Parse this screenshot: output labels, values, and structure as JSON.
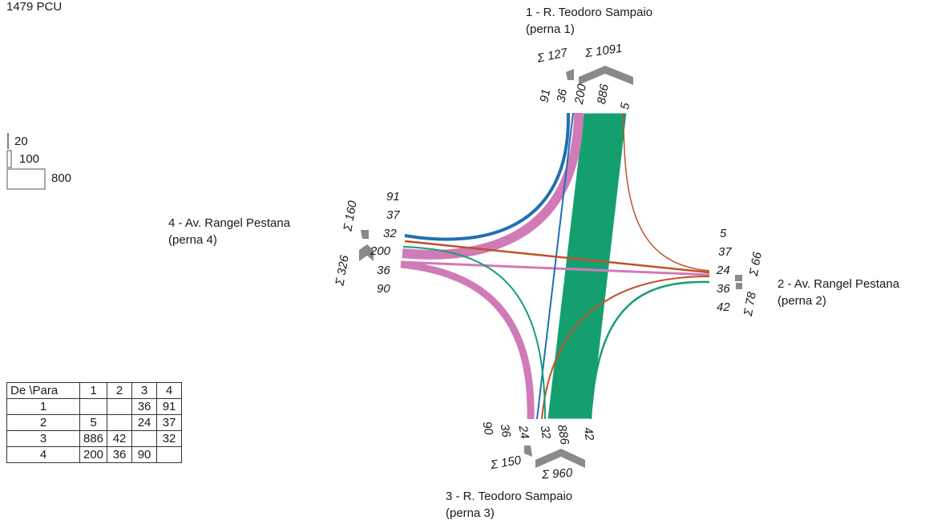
{
  "total_label": "1479 PCU",
  "scale_legend": [
    "20",
    "100",
    "800"
  ],
  "legs": {
    "leg1": {
      "name": "1 - R. Teodoro Sampaio",
      "sub": "(perna 1)",
      "sum_in": "Σ 127",
      "sum_out": "Σ 1091",
      "flows": [
        "91",
        "36",
        "200",
        "886",
        "5"
      ]
    },
    "leg2": {
      "name": "2 - Av. Rangel Pestana",
      "sub": "(perna 2)",
      "sum_in": "Σ 66",
      "sum_out": "Σ 78",
      "flows": [
        "5",
        "37",
        "24",
        "36",
        "42"
      ]
    },
    "leg3": {
      "name": "3 - R. Teodoro Sampaio",
      "sub": "(perna 3)",
      "sum_in": "Σ 150",
      "sum_out": "Σ 960",
      "flows": [
        "90",
        "36",
        "24",
        "32",
        "886",
        "42"
      ]
    },
    "leg4": {
      "name": "4 - Av. Rangel Pestana",
      "sub": "(perna 4)",
      "sum_in": "Σ 160",
      "sum_out": "Σ 326",
      "flows": [
        "91",
        "37",
        "32",
        "200",
        "36",
        "90"
      ]
    }
  },
  "matrix": {
    "corner": "De \\Para",
    "headers": [
      "1",
      "2",
      "3",
      "4"
    ],
    "rows": [
      {
        "from": "1",
        "cells": [
          "",
          "",
          "36",
          "91"
        ]
      },
      {
        "from": "2",
        "cells": [
          "5",
          "",
          "24",
          "37"
        ]
      },
      {
        "from": "3",
        "cells": [
          "886",
          "42",
          "",
          "32"
        ]
      },
      {
        "from": "4",
        "cells": [
          "200",
          "36",
          "90",
          ""
        ]
      }
    ]
  },
  "colors": {
    "leg1": "#1f6fb5",
    "leg2": "#c0522a",
    "leg3": "#14a06e",
    "leg4": "#d17ab8",
    "marker": "#8a8a8a"
  }
}
